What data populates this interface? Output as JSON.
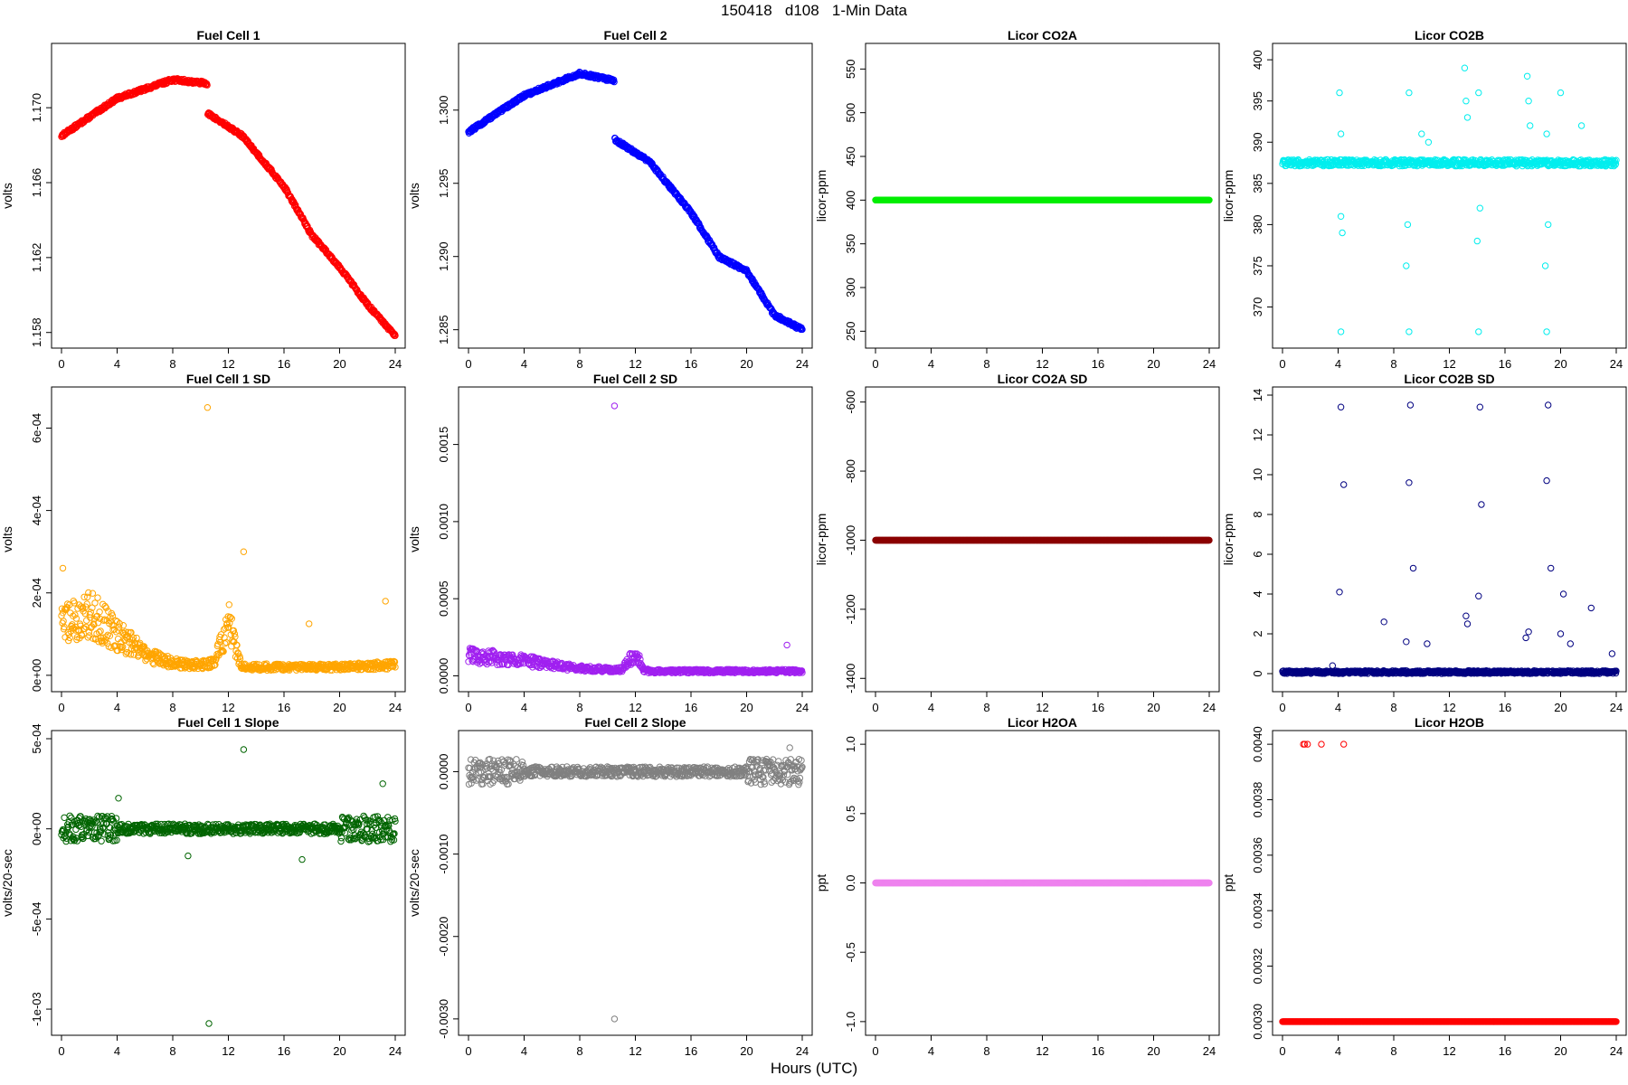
{
  "figure": {
    "title": "150418   d108   1-Min Data",
    "xlabel": "Hours (UTC)"
  },
  "chart_data": [
    {
      "type": "scatter",
      "title": "Fuel Cell 1",
      "ylabel": "volts",
      "color": "#ff0000",
      "xlim": [
        0,
        24
      ],
      "ylim": [
        1.1576,
        1.173
      ],
      "yticks": [
        "1.158",
        "1.162",
        "1.166",
        "1.170"
      ],
      "ytick_values": [
        1.158,
        1.162,
        1.166,
        1.17
      ],
      "xticks": [
        0,
        4,
        8,
        12,
        16,
        20,
        24
      ],
      "x_key": [
        0,
        4,
        8,
        10.5,
        10.5,
        13,
        16,
        18,
        20,
        22,
        24
      ],
      "y_key": [
        1.1685,
        1.1705,
        1.1715,
        1.1713,
        1.1697,
        1.1685,
        1.1658,
        1.1632,
        1.1615,
        1.1595,
        1.1578
      ]
    },
    {
      "type": "scatter",
      "title": "Fuel Cell 2",
      "ylabel": "volts",
      "color": "#0000ff",
      "xlim": [
        0,
        24
      ],
      "ylim": [
        1.2843,
        1.304
      ],
      "yticks": [
        "1.285",
        "1.290",
        "1.295",
        "1.300"
      ],
      "ytick_values": [
        1.285,
        1.29,
        1.295,
        1.3
      ],
      "xticks": [
        0,
        4,
        8,
        12,
        16,
        20,
        24
      ],
      "x_key": [
        0,
        4,
        8,
        10.5,
        10.5,
        13,
        16,
        18,
        20,
        22,
        24
      ],
      "y_key": [
        1.2985,
        1.301,
        1.3025,
        1.302,
        1.298,
        1.2965,
        1.293,
        1.29,
        1.289,
        1.286,
        1.285
      ]
    },
    {
      "type": "scatter",
      "title": "Licor CO2A",
      "ylabel": "licor-ppm",
      "color": "#00ee00",
      "xlim": [
        0,
        24
      ],
      "ylim": [
        240,
        570
      ],
      "yticks": [
        "250",
        "300",
        "350",
        "400",
        "450",
        "500",
        "550"
      ],
      "ytick_values": [
        250,
        300,
        350,
        400,
        450,
        500,
        550
      ],
      "xticks": [
        0,
        4,
        8,
        12,
        16,
        20,
        24
      ],
      "x_key": [
        0,
        24
      ],
      "y_key": [
        400,
        400
      ]
    },
    {
      "type": "scatter",
      "title": "Licor CO2B",
      "ylabel": "licor-ppm",
      "color": "#00eeee",
      "xlim": [
        0,
        24
      ],
      "ylim": [
        366,
        401
      ],
      "yticks": [
        "370",
        "375",
        "380",
        "385",
        "390",
        "395",
        "400"
      ],
      "ytick_values": [
        370,
        375,
        380,
        385,
        390,
        395,
        400
      ],
      "xticks": [
        0,
        4,
        8,
        12,
        16,
        20,
        24
      ],
      "x_key": [
        0,
        24
      ],
      "y_key": [
        387.5,
        387.5
      ],
      "outliers": [
        [
          4.1,
          396
        ],
        [
          4.2,
          391
        ],
        [
          4.2,
          381
        ],
        [
          4.3,
          379
        ],
        [
          4.2,
          367
        ],
        [
          9.1,
          396
        ],
        [
          9.0,
          380
        ],
        [
          8.9,
          375
        ],
        [
          9.1,
          367
        ],
        [
          13.1,
          399
        ],
        [
          13.2,
          395
        ],
        [
          13.3,
          393
        ],
        [
          14.1,
          396
        ],
        [
          14.2,
          382
        ],
        [
          14.0,
          378
        ],
        [
          14.1,
          367
        ],
        [
          17.6,
          398
        ],
        [
          17.7,
          395
        ],
        [
          17.8,
          392
        ],
        [
          19.0,
          391
        ],
        [
          19.1,
          380
        ],
        [
          18.9,
          375
        ],
        [
          19.0,
          367
        ],
        [
          20.0,
          396
        ],
        [
          21.5,
          392
        ],
        [
          10.0,
          391
        ],
        [
          10.5,
          390
        ]
      ]
    },
    {
      "type": "scatter",
      "title": "Fuel Cell 1 SD",
      "ylabel": "volts",
      "color": "#ffa500",
      "xlim": [
        0,
        24
      ],
      "ylim": [
        -2e-05,
        0.00068
      ],
      "yticks": [
        "0e+00",
        "2e-04",
        "4e-04",
        "6e-04"
      ],
      "ytick_values": [
        0,
        0.0002,
        0.0004,
        0.0006
      ],
      "xticks": [
        0,
        4,
        8,
        12,
        16,
        20,
        24
      ],
      "x_key": [
        0,
        2,
        4,
        6,
        8,
        10,
        11,
        12,
        12.6,
        13,
        16,
        20,
        24
      ],
      "y_key": [
        0.00012,
        0.00015,
        0.0001,
        5e-05,
        3e-05,
        2.5e-05,
        3e-05,
        0.00013,
        6e-05,
        2e-05,
        2e-05,
        2e-05,
        2.5e-05
      ],
      "outliers": [
        [
          10.5,
          0.00065
        ],
        [
          13.1,
          0.0003
        ],
        [
          0.1,
          0.00026
        ],
        [
          23.3,
          0.00018
        ],
        [
          17.8,
          0.000125
        ]
      ]
    },
    {
      "type": "scatter",
      "title": "Fuel Cell 2 SD",
      "ylabel": "volts",
      "color": "#a020f0",
      "xlim": [
        0,
        24
      ],
      "ylim": [
        -5e-05,
        0.00182
      ],
      "yticks": [
        "0.0000",
        "0.0005",
        "0.0010",
        "0.0015"
      ],
      "ytick_values": [
        0,
        0.0005,
        0.001,
        0.0015
      ],
      "xticks": [
        0,
        4,
        8,
        12,
        16,
        20,
        24
      ],
      "x_key": [
        0,
        2,
        4,
        6,
        8,
        10,
        11,
        12,
        12.6,
        13,
        16,
        20,
        24
      ],
      "y_key": [
        0.00013,
        0.00012,
        0.0001,
        7e-05,
        5e-05,
        4e-05,
        4e-05,
        0.00015,
        4e-05,
        3e-05,
        3e-05,
        3e-05,
        3e-05
      ],
      "outliers": [
        [
          10.5,
          0.00175
        ],
        [
          22.9,
          0.0002
        ]
      ]
    },
    {
      "type": "scatter",
      "title": "Licor CO2A SD",
      "ylabel": "licor-ppm",
      "color": "#8b0000",
      "xlim": [
        0,
        24
      ],
      "ylim": [
        -1415,
        -580
      ],
      "yticks": [
        "-1400",
        "-1200",
        "-1000",
        "-800",
        "-600"
      ],
      "ytick_values": [
        -1400,
        -1200,
        -1000,
        -800,
        -600
      ],
      "xticks": [
        0,
        4,
        8,
        12,
        16,
        20,
        24
      ],
      "x_key": [
        0,
        24
      ],
      "y_key": [
        -1000,
        -1000
      ]
    },
    {
      "type": "scatter",
      "title": "Licor CO2B SD",
      "ylabel": "licor-ppm",
      "color": "#000080",
      "xlim": [
        0,
        24
      ],
      "ylim": [
        -0.5,
        14.0
      ],
      "yticks": [
        "0",
        "2",
        "4",
        "6",
        "8",
        "10",
        "12",
        "14"
      ],
      "ytick_values": [
        0,
        2,
        4,
        6,
        8,
        10,
        12,
        14
      ],
      "xticks": [
        0,
        4,
        8,
        12,
        16,
        20,
        24
      ],
      "x_key": [
        0,
        24
      ],
      "y_key": [
        0.05,
        0.05
      ],
      "outliers": [
        [
          4.2,
          13.4
        ],
        [
          4.4,
          9.5
        ],
        [
          4.1,
          4.1
        ],
        [
          9.2,
          13.5
        ],
        [
          9.1,
          9.6
        ],
        [
          9.4,
          5.3
        ],
        [
          8.9,
          1.6
        ],
        [
          14.2,
          13.4
        ],
        [
          14.3,
          8.5
        ],
        [
          14.1,
          3.9
        ],
        [
          19.1,
          13.5
        ],
        [
          19.0,
          9.7
        ],
        [
          19.3,
          5.3
        ],
        [
          20.2,
          4.0
        ],
        [
          22.2,
          3.3
        ],
        [
          13.2,
          2.9
        ],
        [
          13.3,
          2.5
        ],
        [
          7.3,
          2.6
        ],
        [
          10.4,
          1.5
        ],
        [
          17.7,
          2.1
        ],
        [
          17.5,
          1.8
        ],
        [
          20.0,
          2.0
        ],
        [
          20.7,
          1.5
        ],
        [
          23.7,
          1.0
        ],
        [
          3.6,
          0.4
        ]
      ]
    },
    {
      "type": "scatter",
      "title": "Fuel Cell 1 Slope",
      "ylabel": "volts/20-sec",
      "color": "#006400",
      "xlim": [
        0,
        24
      ],
      "ylim": [
        -0.0011,
        0.0005
      ],
      "yticks": [
        "-1e-03",
        "-5e-04",
        "0e+00",
        "5e-04"
      ],
      "ytick_values": [
        -0.001,
        -0.0005,
        0,
        0.0005
      ],
      "xticks": [
        0,
        4,
        8,
        12,
        16,
        20,
        24
      ],
      "x_key": [
        0,
        24
      ],
      "y_key": [
        0,
        0
      ],
      "outliers": [
        [
          10.6,
          -0.00108
        ],
        [
          13.1,
          0.00044
        ],
        [
          23.1,
          0.00025
        ],
        [
          4.1,
          0.00017
        ],
        [
          9.1,
          -0.00015
        ],
        [
          17.3,
          -0.00017
        ]
      ]
    },
    {
      "type": "scatter",
      "title": "Fuel Cell 2 Slope",
      "ylabel": "volts/20-sec",
      "color": "#808080",
      "xlim": [
        0,
        24
      ],
      "ylim": [
        -0.0031,
        0.0004
      ],
      "yticks": [
        "-0.0030",
        "-0.0020",
        "-0.0010",
        "0.0000"
      ],
      "ytick_values": [
        -0.003,
        -0.002,
        -0.001,
        0
      ],
      "xticks": [
        0,
        4,
        8,
        12,
        16,
        20,
        24
      ],
      "x_key": [
        0,
        24
      ],
      "y_key": [
        0,
        0
      ],
      "outliers": [
        [
          10.5,
          -0.003
        ],
        [
          23.1,
          0.00029
        ]
      ]
    },
    {
      "type": "scatter",
      "title": "Licor H2OA",
      "ylabel": "ppt",
      "color": "#ee82ee",
      "xlim": [
        0,
        24
      ],
      "ylim": [
        -1.04,
        1.04
      ],
      "yticks": [
        "-1.0",
        "-0.5",
        "0.0",
        "0.5",
        "1.0"
      ],
      "ytick_values": [
        -1.0,
        -0.5,
        0,
        0.5,
        1.0
      ],
      "xticks": [
        0,
        4,
        8,
        12,
        16,
        20,
        24
      ],
      "x_key": [
        0,
        24
      ],
      "y_key": [
        0,
        0
      ]
    },
    {
      "type": "scatter",
      "title": "Licor H2OB",
      "ylabel": "ppt",
      "color": "#ff0000",
      "xlim": [
        0,
        24
      ],
      "ylim": [
        0.00298,
        0.00402
      ],
      "yticks": [
        "0.0030",
        "0.0032",
        "0.0034",
        "0.0036",
        "0.0038",
        "0.0040"
      ],
      "ytick_values": [
        0.003,
        0.0032,
        0.0034,
        0.0036,
        0.0038,
        0.004
      ],
      "xticks": [
        0,
        4,
        8,
        12,
        16,
        20,
        24
      ],
      "x_key": [
        0,
        24
      ],
      "y_key": [
        0.003,
        0.003
      ],
      "outliers": [
        [
          1.5,
          0.004
        ],
        [
          1.6,
          0.004
        ],
        [
          1.8,
          0.004
        ],
        [
          2.8,
          0.004
        ],
        [
          4.4,
          0.004
        ]
      ]
    }
  ]
}
